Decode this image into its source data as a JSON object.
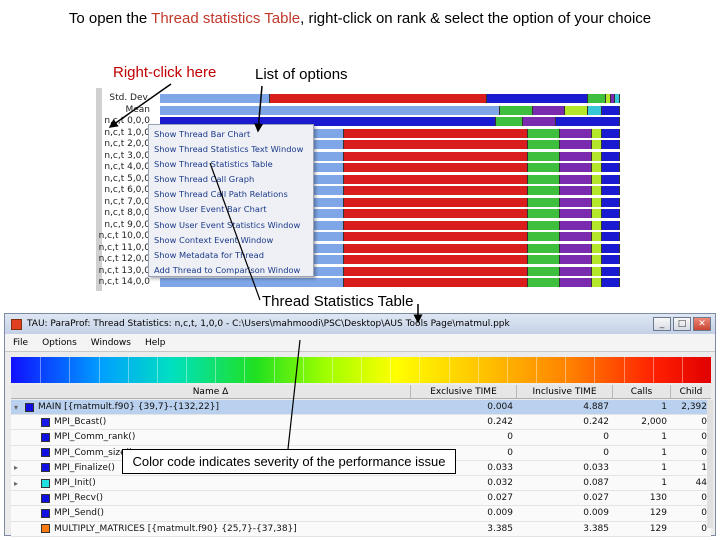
{
  "heading": {
    "prefix": "To open the ",
    "highlight": "Thread statistics Table",
    "suffix": ", right-click on rank & select the option of your choice"
  },
  "callouts": {
    "right_click": "Right-click here",
    "list_of_options": "List of options",
    "thread_table": "Thread Statistics Table",
    "severity": "Color code indicates severity of the performance issue"
  },
  "bar_chart": {
    "row_labels": [
      "Std. Dev.",
      "Mean",
      "n,c,t 0,0,0",
      "n,c,t 1,0,0",
      "n,c,t 2,0,0",
      "n,c,t 3,0,0",
      "n,c,t 4,0,0",
      "n,c,t 5,0,0",
      "n,c,t 6,0,0",
      "n,c,t 7,0,0",
      "n,c,t 8,0,0",
      "n,c,t 9,0,0",
      "n,c,t 10,0,0",
      "n,c,t 11,0,0",
      "n,c,t 12,0,0",
      "n,c,t 13,0,0",
      "n,c,t 14,0,0"
    ],
    "colors": {
      "blue": "#7fa6e6",
      "red": "#d91c1c",
      "darkblue": "#1a1ad0",
      "green": "#3ec03e",
      "purple": "#7a2bb0",
      "lime": "#b4e62a",
      "cyan": "#36c8d8"
    }
  },
  "context_menu": {
    "items": [
      "Show Thread Bar Chart",
      "Show Thread Statistics Text Window",
      "Show Thread Statistics Table",
      "Show Thread Call Graph",
      "Show Thread Call Path Relations",
      "Show User Event Bar Chart",
      "Show User Event Statistics Window",
      "Show Context Event Window",
      "Show Metadata for Thread",
      "Add Thread to Comparison Window"
    ]
  },
  "stats_window": {
    "title": "TAU: ParaProf: Thread Statistics: n,c,t, 1,0,0 - C:\\Users\\mahmoodi\\PSC\\Desktop\\AUS Tools Page\\matmul.ppk",
    "menu": [
      "File",
      "Options",
      "Windows",
      "Help"
    ],
    "columns": {
      "name": "Name Δ",
      "exclusive": "Exclusive TIME",
      "inclusive": "Inclusive TIME",
      "calls": "Calls",
      "child_calls": "Child Calls"
    },
    "rows": [
      {
        "toggle": "▾",
        "name": "MAIN [{matmult.f90} {39,7}-{132,22}]",
        "exclusive": "0.004",
        "inclusive": "4.887",
        "calls": "1",
        "child_calls": "2,392",
        "color": "#1010e0",
        "selected": true
      },
      {
        "toggle": "",
        "name": "MPI_Bcast()",
        "exclusive": "0.242",
        "inclusive": "0.242",
        "calls": "2,000",
        "child_calls": "0",
        "color": "#1818e8",
        "selected": false
      },
      {
        "toggle": "",
        "name": "MPI_Comm_rank()",
        "exclusive": "0",
        "inclusive": "0",
        "calls": "1",
        "child_calls": "0",
        "color": "#1010e0",
        "selected": false
      },
      {
        "toggle": "",
        "name": "MPI_Comm_size()",
        "exclusive": "0",
        "inclusive": "0",
        "calls": "1",
        "child_calls": "0",
        "color": "#1010e0",
        "selected": false
      },
      {
        "toggle": "▸",
        "name": "MPI_Finalize()",
        "exclusive": "0.033",
        "inclusive": "0.033",
        "calls": "1",
        "child_calls": "1",
        "color": "#1010e0",
        "selected": false
      },
      {
        "toggle": "▸",
        "name": "MPI_Init()",
        "exclusive": "0.032",
        "inclusive": "0.087",
        "calls": "1",
        "child_calls": "44",
        "color": "#20e0e0",
        "selected": false
      },
      {
        "toggle": "",
        "name": "MPI_Recv()",
        "exclusive": "0.027",
        "inclusive": "0.027",
        "calls": "130",
        "child_calls": "0",
        "color": "#1010e0",
        "selected": false
      },
      {
        "toggle": "",
        "name": "MPI_Send()",
        "exclusive": "0.009",
        "inclusive": "0.009",
        "calls": "129",
        "child_calls": "0",
        "color": "#1010e0",
        "selected": false
      },
      {
        "toggle": "",
        "name": "MULTIPLY_MATRICES [{matmult.f90} {25,7}-{37,38}]",
        "exclusive": "3.385",
        "inclusive": "3.385",
        "calls": "129",
        "child_calls": "0",
        "color": "#ff7a10",
        "selected": false
      }
    ]
  }
}
